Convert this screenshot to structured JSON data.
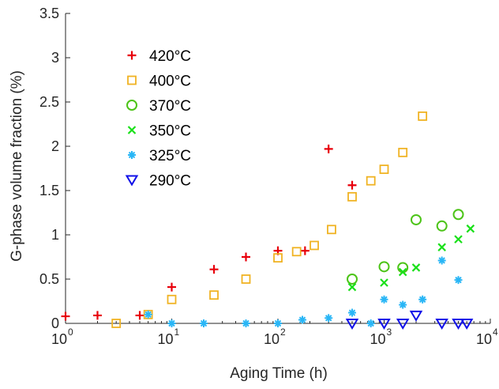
{
  "chart_data": {
    "type": "scatter",
    "title": "",
    "xlabel": "Aging Time (h)",
    "ylabel": "G-phase volume fraction (%)",
    "xscale": "log",
    "xlim": [
      1,
      10000
    ],
    "ylim": [
      0,
      3.5
    ],
    "x_ticks": [
      {
        "value": 1,
        "base": "10",
        "exp": "0"
      },
      {
        "value": 10,
        "base": "10",
        "exp": "1"
      },
      {
        "value": 100,
        "base": "10",
        "exp": "2"
      },
      {
        "value": 1000,
        "base": "10",
        "exp": "3"
      },
      {
        "value": 10000,
        "base": "10",
        "exp": "4"
      }
    ],
    "y_ticks": [
      {
        "value": 0,
        "label": "0"
      },
      {
        "value": 0.5,
        "label": "0.5"
      },
      {
        "value": 1,
        "label": "1"
      },
      {
        "value": 1.5,
        "label": "1.5"
      },
      {
        "value": 2,
        "label": "2"
      },
      {
        "value": 2.5,
        "label": "2.5"
      },
      {
        "value": 3,
        "label": "3"
      },
      {
        "value": 3.5,
        "label": "3.5"
      }
    ],
    "grid": false,
    "legend_position": "top-left",
    "series": [
      {
        "name": "420°C",
        "marker": "plus",
        "color": "#e8000b",
        "points": [
          [
            1,
            0.08
          ],
          [
            2,
            0.09
          ],
          [
            5,
            0.09
          ],
          [
            10,
            0.41
          ],
          [
            25,
            0.61
          ],
          [
            50,
            0.75
          ],
          [
            100,
            0.82
          ],
          [
            180,
            0.82
          ],
          [
            300,
            1.97
          ],
          [
            500,
            1.56
          ]
        ]
      },
      {
        "name": "400°C",
        "marker": "square",
        "color": "#f0b323",
        "points": [
          [
            3,
            0.0
          ],
          [
            6,
            0.1
          ],
          [
            10,
            0.27
          ],
          [
            25,
            0.32
          ],
          [
            50,
            0.5
          ],
          [
            100,
            0.74
          ],
          [
            150,
            0.81
          ],
          [
            220,
            0.88
          ],
          [
            320,
            1.06
          ],
          [
            500,
            1.43
          ],
          [
            750,
            1.61
          ],
          [
            1000,
            1.74
          ],
          [
            1500,
            1.93
          ],
          [
            2300,
            2.34
          ]
        ]
      },
      {
        "name": "370°C",
        "marker": "circle",
        "color": "#4cc417",
        "points": [
          [
            500,
            0.5
          ],
          [
            1000,
            0.64
          ],
          [
            1500,
            0.63
          ],
          [
            2000,
            1.17
          ],
          [
            3500,
            1.1
          ],
          [
            5000,
            1.23
          ]
        ]
      },
      {
        "name": "350°C",
        "marker": "x",
        "color": "#1ae01a",
        "points": [
          [
            500,
            0.41
          ],
          [
            1000,
            0.46
          ],
          [
            1500,
            0.58
          ],
          [
            2000,
            0.63
          ],
          [
            3500,
            0.86
          ],
          [
            5000,
            0.95
          ],
          [
            6500,
            1.07
          ]
        ]
      },
      {
        "name": "325°C",
        "marker": "asterisk",
        "color": "#29b6f6",
        "points": [
          [
            6,
            0.1
          ],
          [
            10,
            0.0
          ],
          [
            20,
            0.0
          ],
          [
            50,
            0.0
          ],
          [
            100,
            0.0
          ],
          [
            170,
            0.04
          ],
          [
            300,
            0.06
          ],
          [
            500,
            0.12
          ],
          [
            750,
            0.0
          ],
          [
            1000,
            0.27
          ],
          [
            1500,
            0.21
          ],
          [
            2300,
            0.27
          ],
          [
            3500,
            0.71
          ],
          [
            5000,
            0.49
          ]
        ]
      },
      {
        "name": "290°C",
        "marker": "triangle-down",
        "color": "#1010e8",
        "points": [
          [
            500,
            0.0
          ],
          [
            1000,
            0.0
          ],
          [
            1500,
            0.0
          ],
          [
            2000,
            0.09
          ],
          [
            3500,
            0.0
          ],
          [
            5000,
            0.0
          ],
          [
            6000,
            0.0
          ]
        ]
      }
    ]
  }
}
